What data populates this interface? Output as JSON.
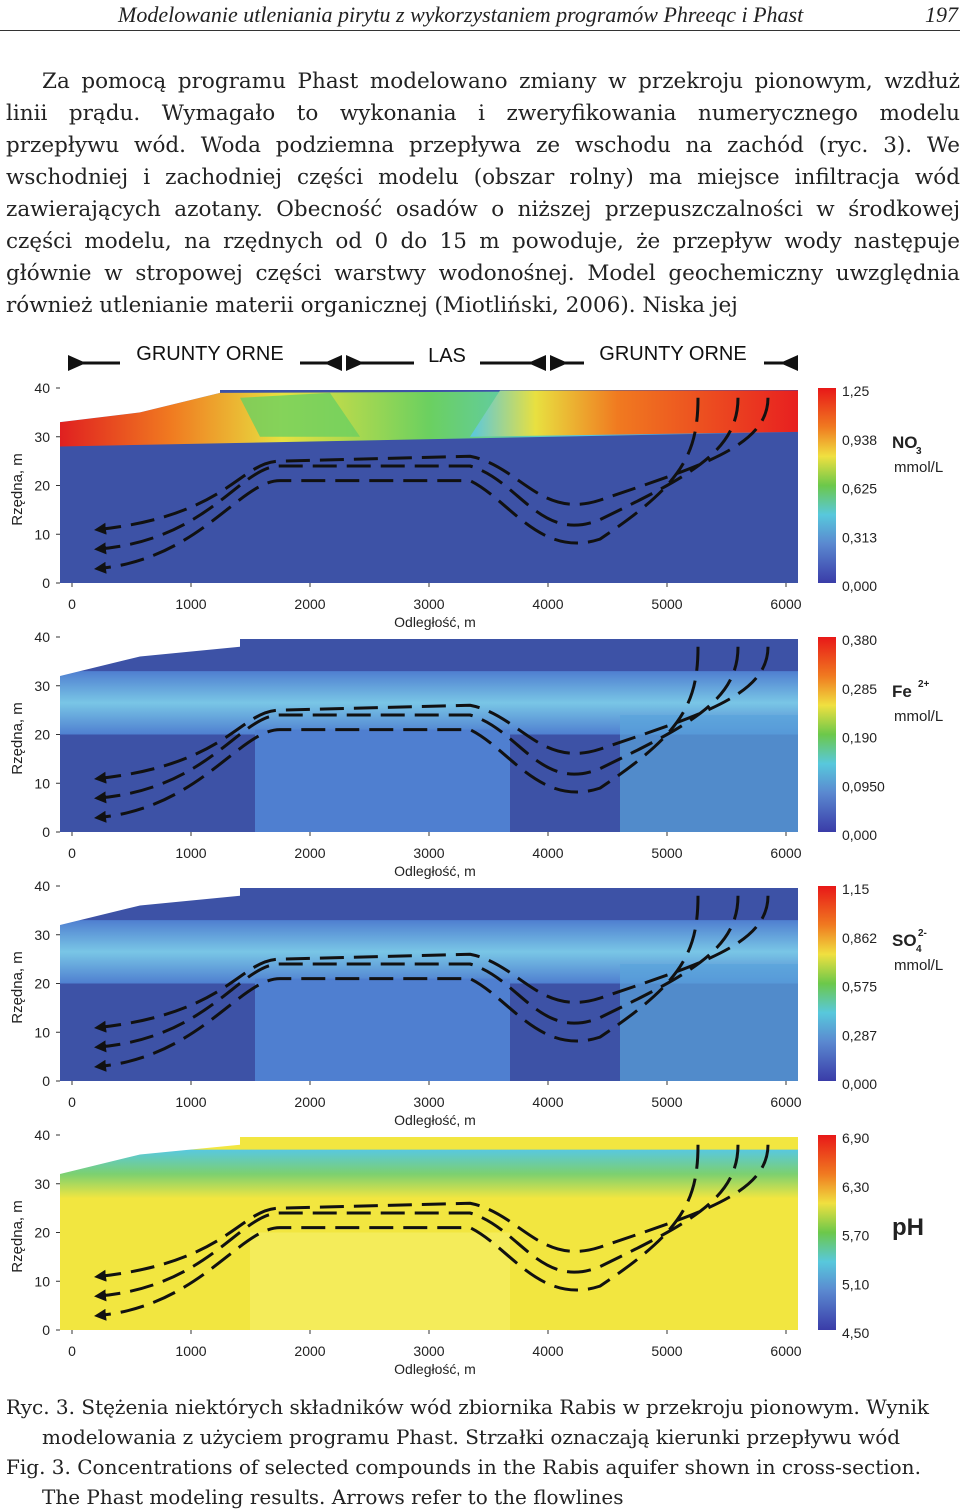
{
  "header": {
    "title": "Modelowanie utleniania pirytu z wykorzystaniem programów Phreeqc i Phast",
    "page_number": "197"
  },
  "body_text": "Za pomocą programu Phast modelowano zmiany w przekroju pionowym, wzdłuż linii prądu. Wymagało to wykonania i zweryfikowania numerycznego modelu przepływu wód. Woda podziemna przepływa ze wschodu na zachód (ryc. 3). We wschodniej i zachodniej części modelu (obszar rolny) ma miejsce infiltracja wód zawierających azotany. Obecność osadów o niższej przepuszczalności w środkowej części modelu, na rzędnych od 0 do 15 m powoduje, że przepływ wody następuje głównie w stropowej części warstwy wodonośnej. Model geochemiczny uwzględnia również utlenianie materii organicznej (Miotliński, 2006). Niska jej",
  "figure": {
    "zones": [
      "GRUNTY ORNE",
      "LAS",
      "GRUNTY ORNE"
    ],
    "ylabel": "Rzędna, m",
    "xlabel": "Odległość, m",
    "y_ticks": [
      "0",
      "10",
      "20",
      "30",
      "40"
    ],
    "x_ticks": [
      "0",
      "1000",
      "2000",
      "3000",
      "4000",
      "5000",
      "6000"
    ],
    "panels": [
      {
        "id": "no3",
        "species": "NO",
        "sub": "3",
        "sup": "",
        "unit": "mmol/L",
        "scale": [
          "1,25",
          "0,938",
          "0,625",
          "0,313",
          "0,000"
        ],
        "colors": {
          "bg": "#3d52a6",
          "high": "#e02020",
          "mid": "#f0e040",
          "low": "#6bd6e8"
        }
      },
      {
        "id": "fe",
        "species": "Fe",
        "sub": "",
        "sup": "2+",
        "unit": "mmol/L",
        "scale": [
          "0,380",
          "0,285",
          "0,190",
          "0,0950",
          "0,000"
        ],
        "colors": {
          "bg": "#3d52a6",
          "high": "#e02020",
          "mid": "#f0e040",
          "low": "#6bd6e8"
        }
      },
      {
        "id": "so4",
        "species": "SO",
        "sub": "4",
        "sup": "2-",
        "unit": "mmol/L",
        "scale": [
          "1,15",
          "0,862",
          "0,575",
          "0,287",
          "0,000"
        ],
        "colors": {
          "bg": "#3d52a6",
          "high": "#e02020",
          "mid": "#f0e040",
          "low": "#6bd6e8"
        }
      },
      {
        "id": "ph",
        "species": "pH",
        "sub": "",
        "sup": "",
        "unit": "",
        "scale": [
          "6,90",
          "6,30",
          "5,70",
          "5,10",
          "4,50"
        ],
        "colors": {
          "bg": "#f2e640",
          "high": "#e02020",
          "mid": "#f0e040",
          "low": "#6bd6e8"
        }
      }
    ]
  },
  "caption": {
    "pl": "Ryc. 3. Stężenia niektórych składników wód zbiornika Rabis w przekroju pionowym. Wynik modelowania z użyciem programu Phast. Strzałki oznaczają kierunki przepływu wód",
    "en": "Fig. 3. Concentrations of selected compounds in the Rabis aquifer shown in cross-section. The Phast modeling results. Arrows refer to the flowlines"
  }
}
